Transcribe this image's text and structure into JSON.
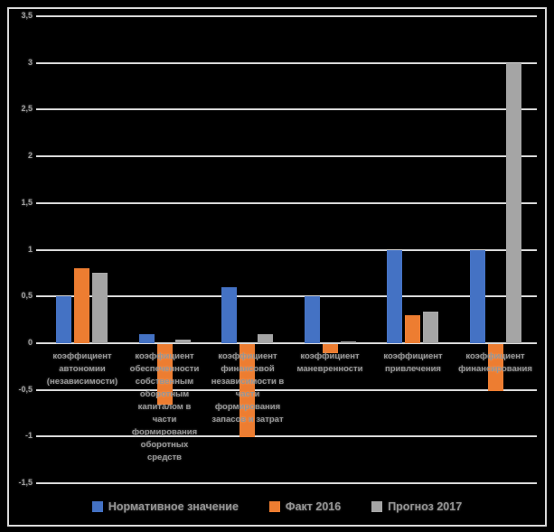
{
  "chart_data": {
    "type": "bar",
    "title": "",
    "xlabel": "",
    "ylabel": "",
    "grid": true,
    "legend_position": "bottom",
    "ylim": [
      -1.5,
      3.5
    ],
    "ytick_step": 0.5,
    "ytick_labels": [
      "3,5",
      "3",
      "2,5",
      "2",
      "1,5",
      "1",
      "0,5",
      "0",
      "-0,5",
      "-1",
      "-1,5"
    ],
    "categories": [
      "коэффициент\nавтономии\n(независимости)",
      "коэффициент\nобеспеченности\nсобственным\nоборотным\nкапиталом в\nчасти\nформирования\nоборотных\nсредств",
      "коэффициент\nфинансовой\nнезависимости в\nчасти\nформирования\nзапасов и затрат",
      "коэффициент\nманевренности",
      "коэффициент\nпривлечения",
      "коэффициент\nфинансирования"
    ],
    "series": [
      {
        "name": "Нормативное значение",
        "color": "#4472C4",
        "values": [
          0.5,
          0.1,
          0.6,
          0.5,
          1.0,
          1.0
        ]
      },
      {
        "name": "Факт 2016",
        "color": "#ED7D31",
        "values": [
          0.8,
          -0.65,
          -1.0,
          -0.1,
          0.3,
          -0.5
        ]
      },
      {
        "name": "Прогноз 2017",
        "color": "#A5A5A5",
        "values": [
          0.75,
          0.04,
          0.1,
          0.02,
          0.34,
          3.0
        ]
      }
    ],
    "colors": {
      "background": "#000000",
      "frame_border": "#d9d9d9",
      "gridline": "#d9d9d9",
      "text": "#949494"
    }
  }
}
